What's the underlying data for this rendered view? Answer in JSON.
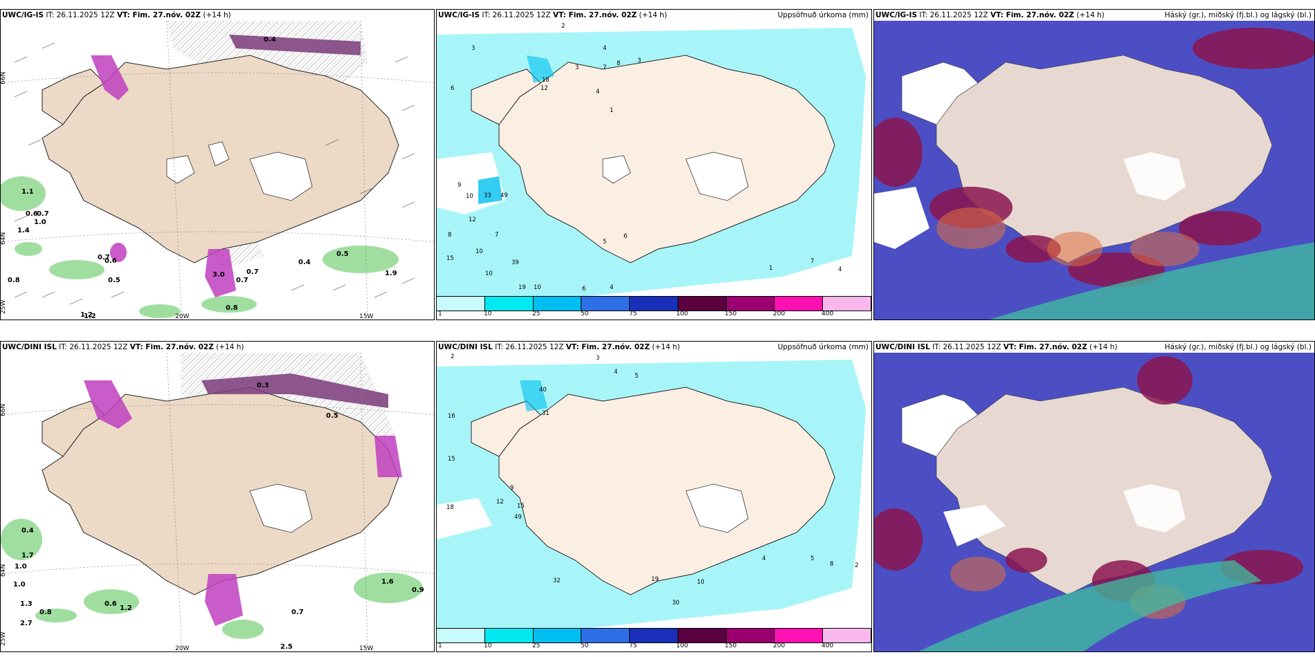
{
  "panels": [
    {
      "model": "UWC/IG-IS",
      "it_label": "IT:",
      "it": "26.11.2025 12Z",
      "vt_label": "VT: Fim. 27.nóv. 02Z",
      "lead": "(+14 h)",
      "title_right": ""
    },
    {
      "model": "UWC/IG-IS",
      "it_label": "IT:",
      "it": "26.11.2025 12Z",
      "vt_label": "VT: Fim. 27.nóv. 02Z",
      "lead": "(+14 h)",
      "title_right": "Uppsöfnuð úrkoma (mm)"
    },
    {
      "model": "UWC/IG-IS",
      "it_label": "IT:",
      "it": "26.11.2025 12Z",
      "vt_label": "VT: Fim. 27.nóv. 02Z",
      "lead": "(+14 h)",
      "title_right": "Háský (gr.), miðský (fj.bl.) og lágský (bl.)"
    },
    {
      "model": "UWC/DINI ISL",
      "it_label": "IT:",
      "it": "26.11.2025 12Z",
      "vt_label": "VT: Fim. 27.nóv. 02Z",
      "lead": "(+14 h)",
      "title_right": ""
    },
    {
      "model": "UWC/DINI ISL",
      "it_label": "IT:",
      "it": "26.11.2025 12Z",
      "vt_label": "VT: Fim. 27.nóv. 02Z",
      "lead": "(+14 h)",
      "title_right": "Uppsöfnuð úrkoma (mm)"
    },
    {
      "model": "UWC/DINI ISL",
      "it_label": "IT:",
      "it": "26.11.2025 12Z",
      "vt_label": "VT: Fim. 27.nóv. 02Z",
      "lead": "(+14 h)",
      "title_right": "Háský (gr.), miðský (fj.bl.) og lágský (bl.)"
    }
  ],
  "axis_labels": {
    "lat66": "66N",
    "lat64": "64N",
    "lon25": "25W",
    "lon20": "20W",
    "lon15": "15W"
  },
  "precip_legend": {
    "ticks": [
      "1",
      "10",
      "25",
      "50",
      "75",
      "100",
      "150",
      "200",
      "400"
    ],
    "colors": [
      "#c8fbfb",
      "#00e8f0",
      "#00bff0",
      "#2f6fe6",
      "#1a2fb8",
      "#5a0040",
      "#9c0070",
      "#ff10b0",
      "#f8b8ee"
    ]
  },
  "colors": {
    "land": "#f0e1d2",
    "land_light": "#fbefe3",
    "sea_light": "#9ef4f8",
    "green": "#7fd37f",
    "magenta": "#c040c0",
    "cloud_high": "#9a3ea0",
    "cloud_mid": "#2f3fae",
    "cloud_low": "#3fbf9f"
  },
  "wind_labels_top": [
    "0.4",
    "1.1",
    "0.6",
    "0.7",
    "1.0",
    "1.4",
    "0.7",
    "0.6",
    "0.5",
    "0.8",
    "1.2",
    "3.0",
    "0.7",
    "0.7",
    "0.8",
    "1.2",
    "0.4",
    "0.5",
    "1.9"
  ],
  "wind_labels_bottom": [
    "0.3",
    "0.4",
    "0.5",
    "1.0",
    "1.7",
    "1.0",
    "1.3",
    "0.8",
    "2.7",
    "0.6",
    "1.2",
    "2.5",
    "0.7",
    "0.9",
    "1.6"
  ],
  "precip_labels_top": [
    "2",
    "3",
    "3",
    "4",
    "7",
    "8",
    "3",
    "4",
    "6",
    "12",
    "18",
    "1",
    "9",
    "10",
    "33",
    "49",
    "12",
    "7",
    "8",
    "15",
    "10",
    "10",
    "39",
    "19",
    "10",
    "5",
    "6",
    "6",
    "4",
    "1",
    "7",
    "4"
  ],
  "precip_labels_bottom": [
    "2",
    "3",
    "4",
    "5",
    "16",
    "40",
    "31",
    "15",
    "9",
    "12",
    "15",
    "49",
    "32",
    "18",
    "10",
    "19",
    "30",
    "5",
    "8",
    "2",
    "4"
  ]
}
